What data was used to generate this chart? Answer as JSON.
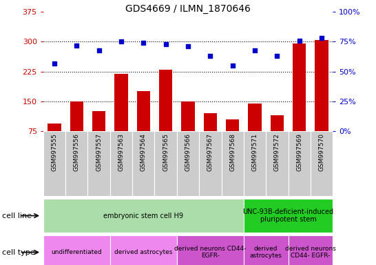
{
  "title": "GDS4669 / ILMN_1870646",
  "samples": [
    "GSM997555",
    "GSM997556",
    "GSM997557",
    "GSM997563",
    "GSM997564",
    "GSM997565",
    "GSM997566",
    "GSM997567",
    "GSM997568",
    "GSM997571",
    "GSM997572",
    "GSM997569",
    "GSM997570"
  ],
  "counts": [
    95,
    150,
    125,
    220,
    175,
    230,
    150,
    120,
    105,
    145,
    115,
    295,
    305
  ],
  "percentiles": [
    57,
    72,
    68,
    75,
    74,
    73,
    71,
    63,
    55,
    68,
    63,
    76,
    78
  ],
  "ylim_left": [
    75,
    375
  ],
  "ylim_right": [
    0,
    100
  ],
  "yticks_left": [
    75,
    150,
    225,
    300,
    375
  ],
  "yticks_right": [
    0,
    25,
    50,
    75,
    100
  ],
  "bar_color": "#cc0000",
  "dot_color": "#0000cc",
  "grid_dotted_at": [
    150,
    225,
    300
  ],
  "cell_line_groups": [
    {
      "label": "embryonic stem cell H9",
      "start": 0,
      "end": 9,
      "color": "#aaddaa"
    },
    {
      "label": "UNC-93B-deficient-induced\npluripotent stem",
      "start": 9,
      "end": 13,
      "color": "#22cc22"
    }
  ],
  "cell_type_groups": [
    {
      "label": "undifferentiated",
      "start": 0,
      "end": 3,
      "color": "#ee88ee"
    },
    {
      "label": "derived astrocytes",
      "start": 3,
      "end": 6,
      "color": "#ee88ee"
    },
    {
      "label": "derived neurons CD44-\nEGFR-",
      "start": 6,
      "end": 9,
      "color": "#cc55cc"
    },
    {
      "label": "derived\nastrocytes",
      "start": 9,
      "end": 11,
      "color": "#cc55cc"
    },
    {
      "label": "derived neurons\nCD44- EGFR-",
      "start": 11,
      "end": 13,
      "color": "#cc55cc"
    }
  ],
  "tick_label_color_left": "#cc0000",
  "tick_label_color_right": "#0000cc",
  "xticklabel_bg": "#cccccc",
  "legend_count_color": "#cc0000",
  "legend_pct_color": "#0000cc"
}
